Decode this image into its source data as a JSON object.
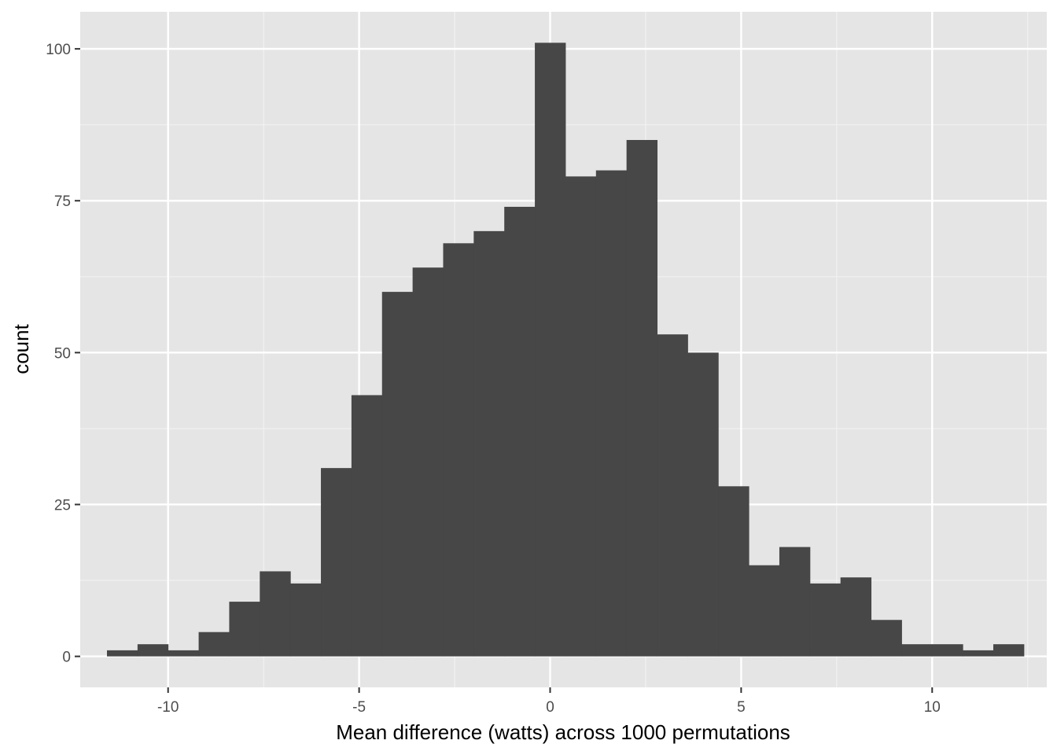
{
  "chart_data": {
    "type": "bar",
    "subtype": "histogram",
    "title": "",
    "xlabel": "Mean difference (watts) across 1000 permutations",
    "ylabel": "count",
    "xlim": [
      -12.3,
      13.0
    ],
    "ylim": [
      -5.1,
      106.1
    ],
    "x_ticks": [
      -10,
      -5,
      0,
      5,
      10
    ],
    "x_tick_labels": [
      "-10",
      "-5",
      "0",
      "5",
      "10"
    ],
    "y_ticks": [
      0,
      25,
      50,
      75,
      100
    ],
    "y_tick_labels": [
      "0",
      "25",
      "50",
      "75",
      "100"
    ],
    "grid": true,
    "legend": "none",
    "bin_width": 0.8,
    "bin_left_edges": [
      -11.6,
      -10.8,
      -10.0,
      -9.2,
      -8.4,
      -7.6,
      -6.8,
      -6.0,
      -5.2,
      -4.4,
      -3.6,
      -2.8,
      -2.0,
      -1.2,
      -0.4,
      0.4,
      1.2,
      2.0,
      2.8,
      3.6,
      4.4,
      5.2,
      6.0,
      6.8,
      7.6,
      8.4,
      9.2,
      10.0,
      10.8,
      11.6
    ],
    "counts": [
      1,
      2,
      1,
      4,
      9,
      14,
      12,
      31,
      43,
      60,
      64,
      68,
      70,
      74,
      101,
      79,
      80,
      85,
      53,
      50,
      28,
      15,
      18,
      12,
      13,
      6,
      2,
      2,
      1,
      2
    ],
    "colors": {
      "bar": "#474747",
      "panel_background": "#e5e5e5",
      "grid_major": "#ffffff",
      "grid_minor": "#f2f2f2",
      "tick_label": "#4d4d4d",
      "tick_mark": "#333333"
    }
  }
}
